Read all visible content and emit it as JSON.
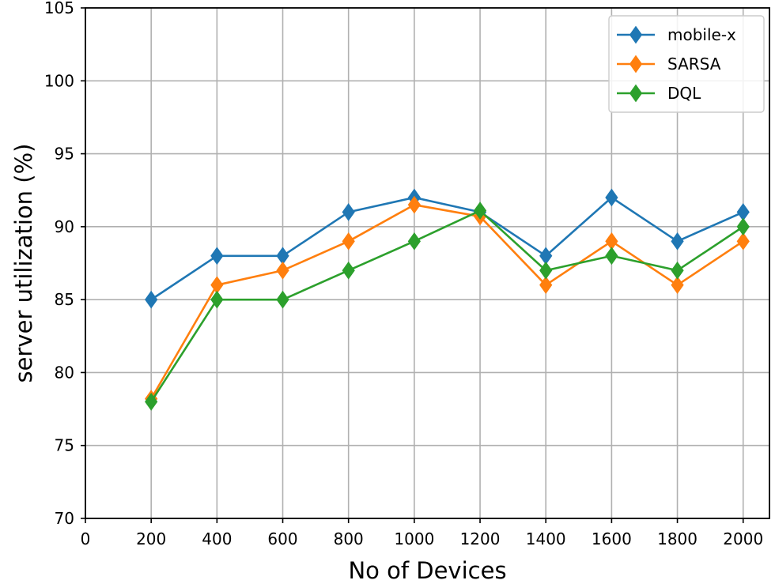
{
  "chart_data": {
    "type": "line",
    "xlabel": "No of Devices",
    "ylabel": "server utilization (%)",
    "xlim": [
      0,
      2080
    ],
    "ylim": [
      70,
      105
    ],
    "xticks": [
      0,
      200,
      400,
      600,
      800,
      1000,
      1200,
      1400,
      1600,
      1800,
      2000
    ],
    "yticks": [
      70,
      75,
      80,
      85,
      90,
      95,
      100,
      105
    ],
    "grid": true,
    "legend_position": "top-right",
    "x": [
      200,
      400,
      600,
      800,
      1000,
      1200,
      1400,
      1600,
      1800,
      2000
    ],
    "series": [
      {
        "name": "mobile-x",
        "color": "#1f77b4",
        "marker": "diamond",
        "values": [
          85,
          88,
          88,
          91,
          92,
          91,
          88,
          92,
          89,
          91
        ]
      },
      {
        "name": "SARSA",
        "color": "#ff7f0e",
        "marker": "diamond",
        "values": [
          78.2,
          86,
          87,
          89,
          91.5,
          90.7,
          86,
          89,
          86,
          89
        ]
      },
      {
        "name": "DQL",
        "color": "#2ca02c",
        "marker": "diamond",
        "values": [
          78,
          85,
          85,
          87,
          89,
          91.1,
          87,
          88,
          87,
          90
        ]
      }
    ]
  }
}
